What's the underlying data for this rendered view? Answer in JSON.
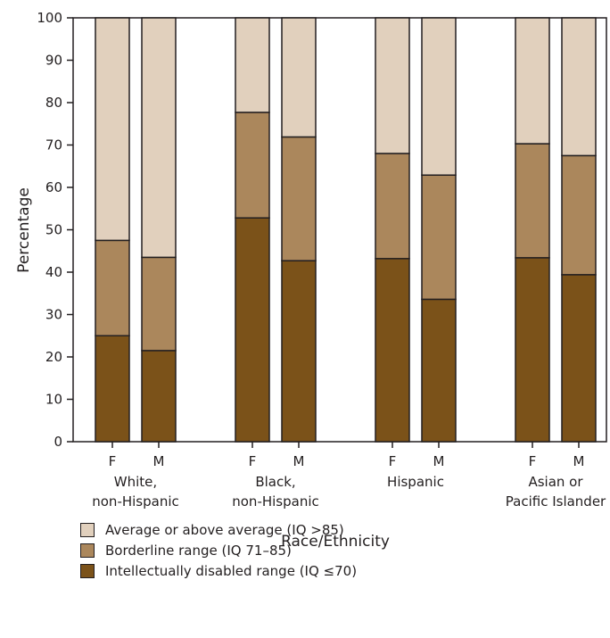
{
  "chart_data": {
    "type": "bar",
    "stacked": true,
    "ylabel": "Percentage",
    "xlabel": "Race/Ethnicity",
    "ylim": [
      0,
      100
    ],
    "yticks": [
      0,
      10,
      20,
      30,
      40,
      50,
      60,
      70,
      80,
      90,
      100
    ],
    "groups": [
      {
        "label_lines": [
          "White,",
          "non-Hispanic"
        ],
        "bars": [
          {
            "sex": "F",
            "values": [
              25,
              22.5,
              52.5
            ]
          },
          {
            "sex": "M",
            "values": [
              21.5,
              22,
              56.5
            ]
          }
        ]
      },
      {
        "label_lines": [
          "Black,",
          "non-Hispanic"
        ],
        "bars": [
          {
            "sex": "F",
            "values": [
              52.8,
              24.9,
              22.3
            ]
          },
          {
            "sex": "M",
            "values": [
              42.7,
              29.2,
              28.1
            ]
          }
        ]
      },
      {
        "label_lines": [
          "Hispanic"
        ],
        "bars": [
          {
            "sex": "F",
            "values": [
              43.2,
              24.8,
              32
            ]
          },
          {
            "sex": "M",
            "values": [
              33.6,
              29.3,
              37.1
            ]
          }
        ]
      },
      {
        "label_lines": [
          "Asian or",
          "Pacific Islander"
        ],
        "bars": [
          {
            "sex": "F",
            "values": [
              43.4,
              26.9,
              29.7
            ]
          },
          {
            "sex": "M",
            "values": [
              39.4,
              28.1,
              32.5
            ]
          }
        ]
      }
    ],
    "series": [
      {
        "name": "Intellectually disabled range (IQ ≤70)",
        "color": "#7b5219"
      },
      {
        "name": "Borderline range (IQ 71–85)",
        "color": "#ab875c"
      },
      {
        "name": "Average or above average (IQ >85)",
        "color": "#e1d0bd"
      }
    ],
    "legend_order": [
      2,
      1,
      0
    ],
    "legend_position": "bottom-left",
    "grid": false
  }
}
